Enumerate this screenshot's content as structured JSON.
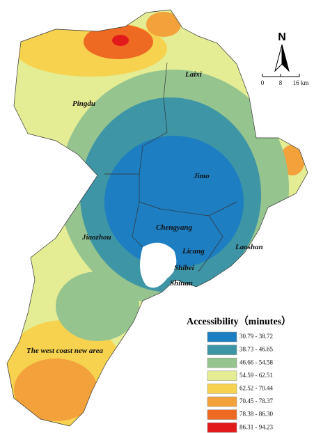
{
  "map": {
    "districts": [
      {
        "label": "Laixi"
      },
      {
        "label": "Pingdu"
      },
      {
        "label": "Jimo"
      },
      {
        "label": "Jiaozhou"
      },
      {
        "label": "Chengyang"
      },
      {
        "label": "Licang"
      },
      {
        "label": "Laoshan"
      },
      {
        "label": "Shibei"
      },
      {
        "label": "Shinan"
      },
      {
        "label": "The west coast new area"
      }
    ],
    "north": "N",
    "scale": {
      "ticks": [
        "0",
        "8",
        "16 km"
      ]
    },
    "legend": {
      "title": "Accessibility（minutes）",
      "items": [
        {
          "label": "30.79 - 38.72",
          "color": "#1d7ec1"
        },
        {
          "label": "38.73 - 46.65",
          "color": "#3d95a6"
        },
        {
          "label": "46.66 - 54.58",
          "color": "#95c48f"
        },
        {
          "label": "54.59 - 62.51",
          "color": "#e4ec94"
        },
        {
          "label": "62.52 - 70.44",
          "color": "#f6d24f"
        },
        {
          "label": "70.45 - 78.37",
          "color": "#f3a13a"
        },
        {
          "label": "78.38 - 86.30",
          "color": "#ee6a22"
        },
        {
          "label": "86.31 - 94.23",
          "color": "#e31a1c"
        }
      ]
    }
  }
}
